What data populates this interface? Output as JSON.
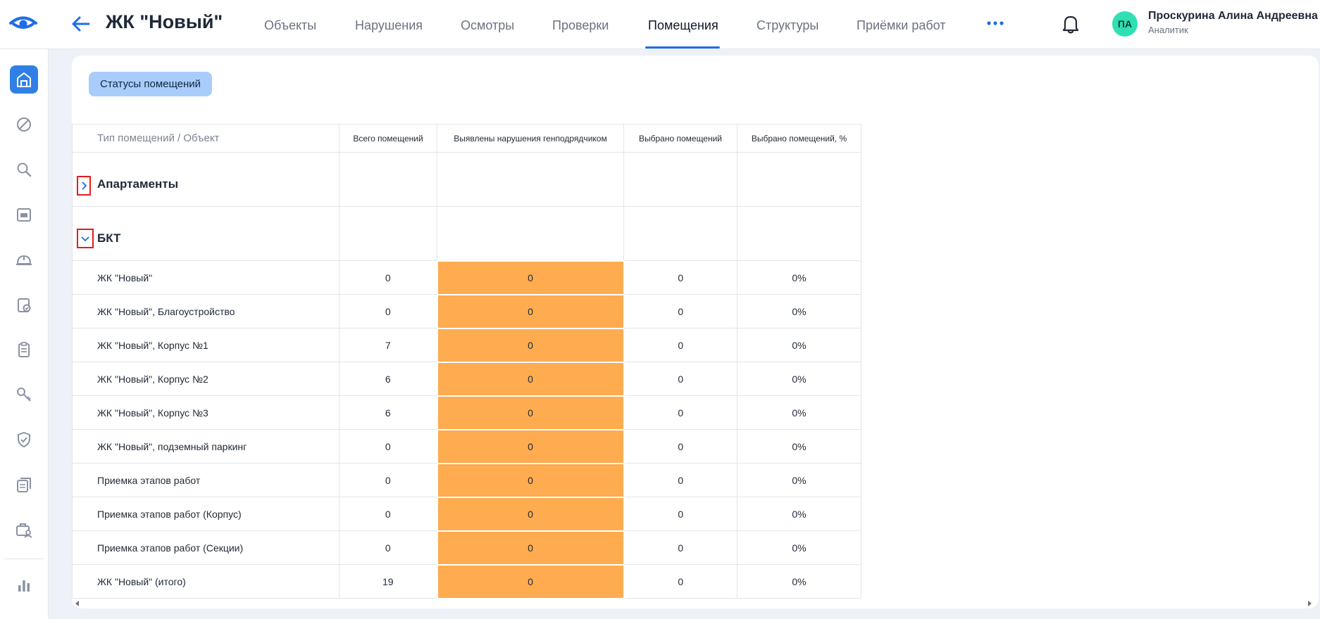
{
  "header": {
    "title": "ЖК \"Новый\"",
    "nav": [
      {
        "label": "Объекты",
        "active": false
      },
      {
        "label": "Нарушения",
        "active": false
      },
      {
        "label": "Осмотры",
        "active": false
      },
      {
        "label": "Проверки",
        "active": false
      },
      {
        "label": "Помещения",
        "active": true
      },
      {
        "label": "Структуры",
        "active": false
      },
      {
        "label": "Приёмки работ",
        "active": false
      }
    ],
    "more_icon": "more-dots-icon",
    "notifications_icon": "bell-icon",
    "user": {
      "initials": "ПА",
      "name": "Проскурина Алина Андреевна",
      "role": "Аналитик"
    }
  },
  "sidebar": {
    "items": [
      {
        "icon": "building-home-icon",
        "active": true
      },
      {
        "icon": "violations-icon"
      },
      {
        "icon": "search-icon"
      },
      {
        "icon": "calendar-icon"
      },
      {
        "icon": "helmet-icon"
      },
      {
        "icon": "checklist-icon"
      },
      {
        "icon": "clipboard-icon"
      },
      {
        "icon": "key-icon"
      },
      {
        "icon": "shield-check-icon"
      },
      {
        "icon": "documents-icon"
      },
      {
        "icon": "case-user-icon"
      },
      {
        "icon": "analytics-icon"
      }
    ]
  },
  "main": {
    "status_button": "Статусы помещений",
    "table": {
      "columns": [
        "Тип помещений / Объект",
        "Всего помещений",
        "Выявлены нарушения генподрядчиком",
        "Выбрано помещений",
        "Выбрано помещений, %"
      ],
      "groups": [
        {
          "name": "Апартаменты",
          "expanded": false
        },
        {
          "name": "БКТ",
          "expanded": true
        }
      ],
      "rows": [
        {
          "name": "ЖК \"Новый\"",
          "total": "0",
          "violations": "0",
          "selected": "0",
          "percent": "0%"
        },
        {
          "name": "ЖК \"Новый\", Благоустройство",
          "total": "0",
          "violations": "0",
          "selected": "0",
          "percent": "0%"
        },
        {
          "name": "ЖК \"Новый\", Корпус №1",
          "total": "7",
          "violations": "0",
          "selected": "0",
          "percent": "0%"
        },
        {
          "name": "ЖК \"Новый\", Корпус №2",
          "total": "6",
          "violations": "0",
          "selected": "0",
          "percent": "0%"
        },
        {
          "name": "ЖК \"Новый\", Корпус №3",
          "total": "6",
          "violations": "0",
          "selected": "0",
          "percent": "0%"
        },
        {
          "name": "ЖК \"Новый\", подземный паркинг",
          "total": "0",
          "violations": "0",
          "selected": "0",
          "percent": "0%"
        },
        {
          "name": "Приемка этапов работ",
          "total": "0",
          "violations": "0",
          "selected": "0",
          "percent": "0%"
        },
        {
          "name": "Приемка этапов работ (Корпус)",
          "total": "0",
          "violations": "0",
          "selected": "0",
          "percent": "0%"
        },
        {
          "name": "Приемка этапов работ (Секции)",
          "total": "0",
          "violations": "0",
          "selected": "0",
          "percent": "0%"
        },
        {
          "name": "ЖК \"Новый\" (итого)",
          "total": "19",
          "violations": "0",
          "selected": "0",
          "percent": "0%"
        }
      ]
    }
  },
  "colors": {
    "accent": "#1e6ee8",
    "violation_cell": "#ffab4f",
    "status_button": "#a9cdfb",
    "avatar": "#2fe0b4",
    "toggle_outline": "#e11d1d"
  }
}
